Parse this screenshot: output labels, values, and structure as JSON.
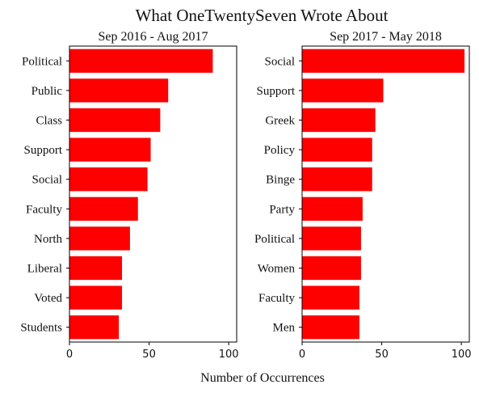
{
  "figure": {
    "title": "What OneTwentySeven Wrote About",
    "xlabel": "Number of Occurrences"
  },
  "chart_data": [
    {
      "type": "bar",
      "orientation": "horizontal",
      "title": "Sep 2016 - Aug 2017",
      "categories": [
        "Political",
        "Public",
        "Class",
        "Support",
        "Social",
        "Faculty",
        "North",
        "Liberal",
        "Voted",
        "Students"
      ],
      "values": [
        90,
        62,
        57,
        51,
        49,
        43,
        38,
        33,
        33,
        31
      ],
      "xlim": [
        0,
        105
      ],
      "xticks": [
        "0",
        "50",
        "100"
      ],
      "bar_color": "#ff0000",
      "grid": false
    },
    {
      "type": "bar",
      "orientation": "horizontal",
      "title": "Sep 2017 - May 2018",
      "categories": [
        "Social",
        "Support",
        "Greek",
        "Policy",
        "Binge",
        "Party",
        "Political",
        "Women",
        "Faculty",
        "Men"
      ],
      "values": [
        102,
        51,
        46,
        44,
        44,
        38,
        37,
        37,
        36,
        36
      ],
      "xlim": [
        0,
        105
      ],
      "xticks": [
        "0",
        "50",
        "100"
      ],
      "bar_color": "#ff0000",
      "grid": false
    }
  ]
}
